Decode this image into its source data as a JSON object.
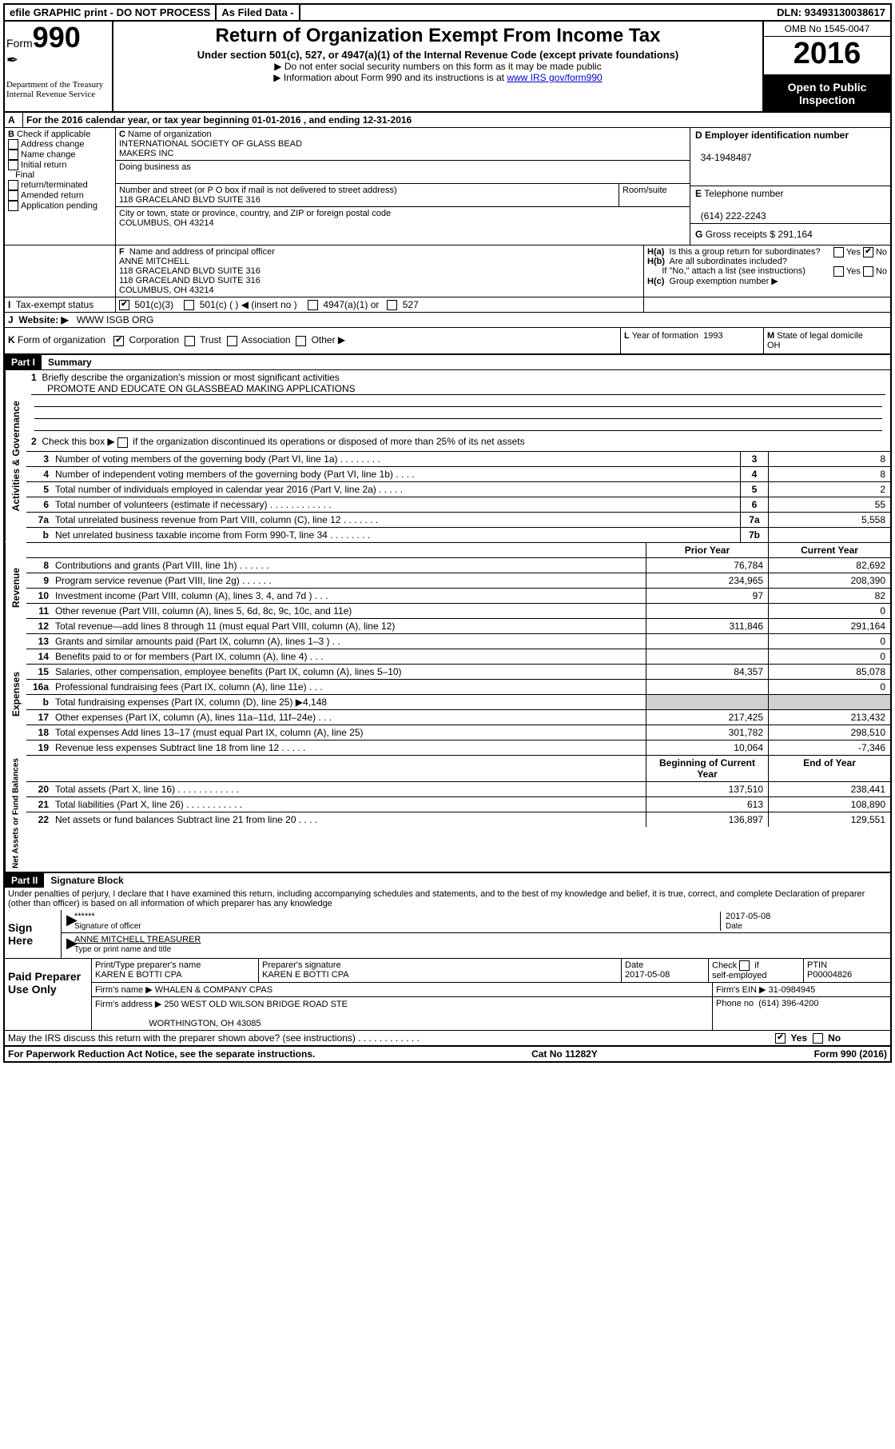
{
  "topbar": {
    "efile": "efile GRAPHIC print - DO NOT PROCESS",
    "asfiled": "As Filed Data -",
    "dln_label": "DLN:",
    "dln": "93493130038617"
  },
  "header": {
    "form_small": "Form",
    "form_number": "990",
    "dept1": "Department of the Treasury",
    "dept2": "Internal Revenue Service",
    "title": "Return of Organization Exempt From Income Tax",
    "subtitle": "Under section 501(c), 527, or 4947(a)(1) of the Internal Revenue Code (except private foundations)",
    "note1": "Do not enter social security numbers on this form as it may be made public",
    "note2": "Information about Form 990 and its instructions is at ",
    "note2_link": "www IRS gov/form990",
    "omb": "OMB No  1545-0047",
    "year": "2016",
    "open": "Open to Public Inspection"
  },
  "rowA": "For the 2016 calendar year, or tax year beginning 01-01-2016   , and ending 12-31-2016",
  "sectionB": {
    "label": "Check if applicable",
    "opts": [
      "Address change",
      "Name change",
      "Initial return",
      "Final return/terminated",
      "Amended return",
      "Application pending"
    ]
  },
  "sectionC": {
    "name_label": "Name of organization",
    "name1": "INTERNATIONAL SOCIETY OF GLASS BEAD",
    "name2": "MAKERS INC",
    "dba_label": "Doing business as",
    "addr_label": "Number and street (or P O  box if mail is not delivered to street address)",
    "room_label": "Room/suite",
    "addr": "118 GRACELAND BLVD SUITE 316",
    "city_label": "City or town, state or province, country, and ZIP or foreign postal code",
    "city": "COLUMBUS, OH  43214"
  },
  "sectionD": {
    "label": "Employer identification number",
    "value": "34-1948487"
  },
  "sectionE": {
    "label": "Telephone number",
    "value": "(614) 222-2243"
  },
  "sectionG": {
    "label": "Gross receipts $",
    "value": "291,164"
  },
  "sectionF": {
    "label": "Name and address of principal officer",
    "name": "ANNE MITCHELL",
    "l1": "118 GRACELAND BLVD SUITE 316",
    "l2": "118 GRACELAND BLVD SUITE 316",
    "l3": "COLUMBUS, OH  43214"
  },
  "sectionH": {
    "a": "Is this a group return for subordinates?",
    "b": "Are all subordinates included?",
    "b_note": "If \"No,\" attach a list  (see instructions)",
    "c": "Group exemption number ▶",
    "yes": "Yes",
    "no": "No"
  },
  "rowI": {
    "label": "Tax-exempt status",
    "opt1": "501(c)(3)",
    "opt2": "501(c) (  ) ◀ (insert no )",
    "opt3": "4947(a)(1) or",
    "opt4": "527"
  },
  "rowJ": {
    "label": "Website: ▶",
    "value": "WWW ISGB ORG"
  },
  "rowK": {
    "label": "Form of organization",
    "opts": [
      "Corporation",
      "Trust",
      "Association",
      "Other ▶"
    ]
  },
  "rowL": {
    "label": "Year of formation",
    "value": "1993"
  },
  "rowM": {
    "label": "State of legal domicile",
    "value": "OH"
  },
  "part1": {
    "header": "Part I",
    "title": "Summary"
  },
  "summary": {
    "l1_label": "Briefly describe the organization's mission or most significant activities",
    "l1_text": "PROMOTE AND EDUCATE ON GLASSBEAD MAKING APPLICATIONS",
    "l2": "Check this box ▶        if the organization discontinued its operations or disposed of more than 25% of its net assets",
    "lines_top": [
      {
        "n": "3",
        "d": "Number of voting members of the governing body (Part VI, line 1a)   .     .     .     .     .     .     .     .",
        "box": "3",
        "v": "8"
      },
      {
        "n": "4",
        "d": "Number of independent voting members of the governing body (Part VI, line 1b)   .     .     .     .",
        "box": "4",
        "v": "8"
      },
      {
        "n": "5",
        "d": "Total number of individuals employed in calendar year 2016 (Part V, line 2a)   .     .     .     .     .",
        "box": "5",
        "v": "2"
      },
      {
        "n": "6",
        "d": "Total number of volunteers (estimate if necessary)    .     .     .     .     .     .     .     .     .     .     .     .",
        "box": "6",
        "v": "55"
      },
      {
        "n": "7a",
        "d": "Total unrelated business revenue from Part VIII, column (C), line 12    .     .     .     .     .     .     .",
        "box": "7a",
        "v": "5,558"
      },
      {
        "n": "b",
        "d": "Net unrelated business taxable income from Form 990-T, line 34   .     .     .     .     .     .     .     .",
        "box": "7b",
        "v": ""
      }
    ],
    "col_prior": "Prior Year",
    "col_current": "Current Year",
    "revenue": [
      {
        "n": "8",
        "d": "Contributions and grants (Part VIII, line 1h)    .     .     .     .     .     .",
        "p": "76,784",
        "c": "82,692"
      },
      {
        "n": "9",
        "d": "Program service revenue (Part VIII, line 2g)   .     .     .     .     .     .",
        "p": "234,965",
        "c": "208,390"
      },
      {
        "n": "10",
        "d": "Investment income (Part VIII, column (A), lines 3, 4, and 7d )   .     .     .",
        "p": "97",
        "c": "82"
      },
      {
        "n": "11",
        "d": "Other revenue (Part VIII, column (A), lines 5, 6d, 8c, 9c, 10c, and 11e)",
        "p": "",
        "c": "0"
      },
      {
        "n": "12",
        "d": "Total revenue—add lines 8 through 11 (must equal Part VIII, column (A), line 12)",
        "p": "311,846",
        "c": "291,164"
      }
    ],
    "expenses": [
      {
        "n": "13",
        "d": "Grants and similar amounts paid (Part IX, column (A), lines 1–3 )   .    .",
        "p": "",
        "c": "0"
      },
      {
        "n": "14",
        "d": "Benefits paid to or for members (Part IX, column (A), line 4)   .    .    .",
        "p": "",
        "c": "0"
      },
      {
        "n": "15",
        "d": "Salaries, other compensation, employee benefits (Part IX, column (A), lines 5–10)",
        "p": "84,357",
        "c": "85,078"
      },
      {
        "n": "16a",
        "d": "Professional fundraising fees (Part IX, column (A), line 11e)   .    .    .",
        "p": "",
        "c": "0"
      },
      {
        "n": "b",
        "d": "Total fundraising expenses (Part IX, column (D), line 25) ▶4,148",
        "p": "gray",
        "c": "gray"
      },
      {
        "n": "17",
        "d": "Other expenses (Part IX, column (A), lines 11a–11d, 11f–24e)  .    .    .",
        "p": "217,425",
        "c": "213,432"
      },
      {
        "n": "18",
        "d": "Total expenses  Add lines 13–17 (must equal Part IX, column (A), line 25)",
        "p": "301,782",
        "c": "298,510"
      },
      {
        "n": "19",
        "d": "Revenue less expenses  Subtract line 18 from line 12   .    .    .    .    .",
        "p": "10,064",
        "c": "-7,346"
      }
    ],
    "col_begin": "Beginning of Current Year",
    "col_end": "End of Year",
    "net": [
      {
        "n": "20",
        "d": "Total assets (Part X, line 16)  .    .    .    .    .    .    .    .    .    .    .    .",
        "p": "137,510",
        "c": "238,441"
      },
      {
        "n": "21",
        "d": "Total liabilities (Part X, line 26)  .    .    .    .    .    .    .    .    .    .    .",
        "p": "613",
        "c": "108,890"
      },
      {
        "n": "22",
        "d": "Net assets or fund balances  Subtract line 21 from line 20    .    .    .    .",
        "p": "136,897",
        "c": "129,551"
      }
    ],
    "vert_ag": "Activities & Governance",
    "vert_rev": "Revenue",
    "vert_exp": "Expenses",
    "vert_net": "Net Assets or Fund Balances"
  },
  "part2": {
    "header": "Part II",
    "title": "Signature Block"
  },
  "sig": {
    "perjury": "Under penalties of perjury, I declare that I have examined this return, including accompanying schedules and statements, and to the best of my knowledge and belief, it is true, correct, and complete  Declaration of preparer (other than officer) is based on all information of which preparer has any knowledge",
    "sign_here": "Sign Here",
    "stars": "******",
    "officer_label": "Signature of officer",
    "date_label": "Date",
    "date": "2017-05-08",
    "officer_name": "ANNE MITCHELL TREASURER",
    "type_label": "Type or print name and title",
    "paid": "Paid Preparer Use Only",
    "prep_name_label": "Print/Type preparer's name",
    "prep_name": "KAREN E BOTTI CPA",
    "prep_sig_label": "Preparer's signature",
    "prep_sig": "KAREN E BOTTI CPA",
    "prep_date": "2017-05-08",
    "check_label": "Check        if self-employed",
    "ptin_label": "PTIN",
    "ptin": "P00004826",
    "firm_name_label": "Firm's name     ▶",
    "firm_name": "WHALEN & COMPANY CPAS",
    "firm_ein_label": "Firm's EIN ▶",
    "firm_ein": "31-0984945",
    "firm_addr_label": "Firm's address ▶",
    "firm_addr1": "250 WEST OLD WILSON BRIDGE ROAD STE",
    "firm_addr2": "WORTHINGTON, OH  43085",
    "phone_label": "Phone no",
    "phone": "(614) 396-4200",
    "discuss": "May the IRS discuss this return with the preparer shown above? (see instructions)   .    .    .    .    .    .    .    .    .    .    .    .",
    "yes": "Yes",
    "no": "No"
  },
  "footer": {
    "left": "For Paperwork Reduction Act Notice, see the separate instructions.",
    "mid": "Cat No  11282Y",
    "right": "Form 990 (2016)"
  }
}
